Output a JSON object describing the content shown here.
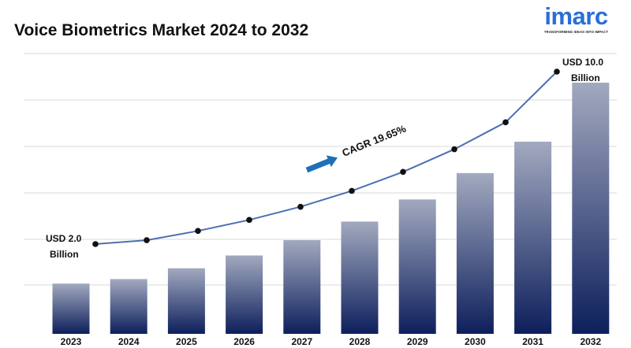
{
  "page": {
    "title": "Voice Biometrics Market 2024 to 2032",
    "brand": {
      "name": "imarc",
      "tagline": "TRANSFORMING IDEAS INTO IMPACT"
    }
  },
  "chart_data": {
    "type": "bar",
    "title": "Voice Biometrics Market 2024 to 2032",
    "categories": [
      "2023",
      "2024",
      "2025",
      "2026",
      "2027",
      "2028",
      "2029",
      "2030",
      "2031",
      "2032"
    ],
    "series": [
      {
        "values": [
          2.0,
          2.18,
          2.61,
          3.12,
          3.73,
          4.47,
          5.35,
          6.4,
          7.65,
          10.0
        ]
      }
    ],
    "trend_line": {
      "values": [
        2.0,
        2.18,
        2.61,
        3.12,
        3.73,
        4.47,
        5.35,
        6.4,
        7.65,
        10.0
      ]
    },
    "annotations": {
      "start": {
        "line1": "USD 2.0",
        "line2": "Billion"
      },
      "end": {
        "line1": "USD 10.0",
        "line2": "Billion"
      },
      "cagr": "CAGR 19.65%"
    },
    "xlabel": "",
    "ylabel": "",
    "grid": true,
    "colors": {
      "bar_top": "#a2a9bf",
      "bar_bottom": "#0d1f5c",
      "line": "#4b6fb3",
      "marker": "#111111",
      "arrow": "#1f6fb8",
      "grid": "#d9d9d9"
    }
  }
}
